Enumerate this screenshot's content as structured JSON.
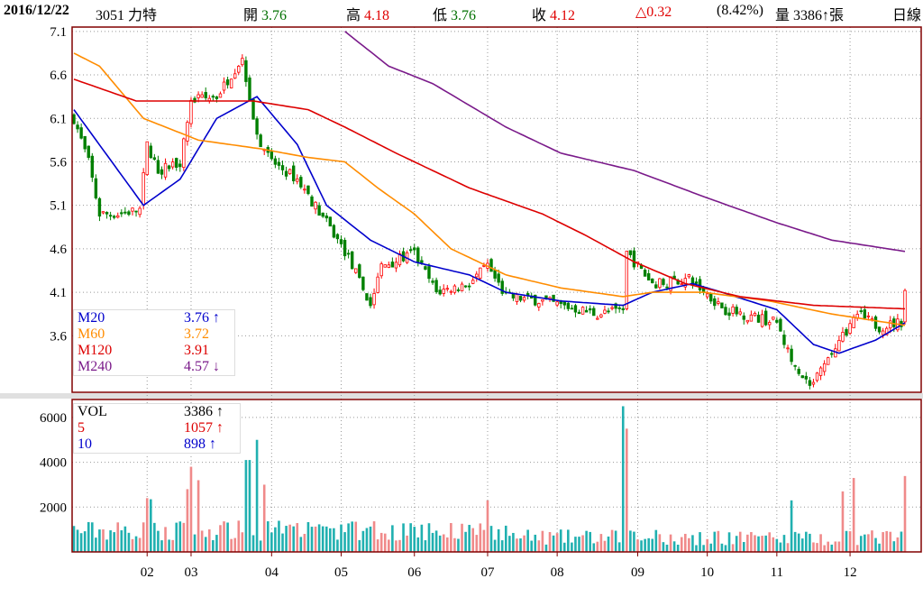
{
  "header": {
    "date": "2016/12/22",
    "stock": "3051 力特",
    "open_label": "開",
    "open": "3.76",
    "high_label": "高",
    "high": "4.18",
    "low_label": "低",
    "low": "3.76",
    "close_label": "收",
    "close": "4.12",
    "change": "△0.32",
    "change_pct": "(8.42%)",
    "volume": "量 3386↑張",
    "period": "日線"
  },
  "legend_price": [
    {
      "name": "M20",
      "value": "3.76 ↑",
      "color": "#0000cc"
    },
    {
      "name": "M60",
      "value": "3.72",
      "color": "#ff8c00"
    },
    {
      "name": "M120",
      "value": "3.91",
      "color": "#dd0000"
    },
    {
      "name": "M240",
      "value": "4.57 ↓",
      "color": "#7a1a8a"
    }
  ],
  "legend_vol": [
    {
      "name": "VOL",
      "value": "3386 ↑",
      "color": "#000000"
    },
    {
      "name": "5",
      "value": "1057 ↑",
      "color": "#dd0000"
    },
    {
      "name": "10",
      "value": "898 ↑",
      "color": "#0000cc"
    }
  ],
  "chart_data": {
    "type": "candlestick",
    "price_ticks": [
      "7.1",
      "6.6",
      "6.1",
      "5.6",
      "5.1",
      "4.6",
      "4.1",
      "3.6"
    ],
    "price_range": [
      2.95,
      7.15
    ],
    "vol_ticks": [
      "6000",
      "4000",
      "2000"
    ],
    "vol_range": [
      0,
      6800
    ],
    "months": [
      {
        "label": "02",
        "day": 20
      },
      {
        "label": "03",
        "day": 32
      },
      {
        "label": "04",
        "day": 54
      },
      {
        "label": "05",
        "day": 73
      },
      {
        "label": "06",
        "day": 93
      },
      {
        "label": "07",
        "day": 113
      },
      {
        "label": "08",
        "day": 132
      },
      {
        "label": "09",
        "day": 154
      },
      {
        "label": "10",
        "day": 173
      },
      {
        "label": "11",
        "day": 192
      },
      {
        "label": "12",
        "day": 212
      }
    ],
    "days": 228,
    "close_keypoints": [
      [
        0,
        6.1
      ],
      [
        4,
        5.6
      ],
      [
        7,
        5.0
      ],
      [
        12,
        5.0
      ],
      [
        18,
        5.05
      ],
      [
        20,
        5.8
      ],
      [
        23,
        5.5
      ],
      [
        29,
        5.6
      ],
      [
        32,
        6.3
      ],
      [
        39,
        6.35
      ],
      [
        46,
        6.8
      ],
      [
        50,
        5.9
      ],
      [
        54,
        5.6
      ],
      [
        61,
        5.4
      ],
      [
        69,
        4.9
      ],
      [
        75,
        4.5
      ],
      [
        81,
        3.95
      ],
      [
        84,
        4.4
      ],
      [
        93,
        4.55
      ],
      [
        99,
        4.1
      ],
      [
        108,
        4.2
      ],
      [
        113,
        4.4
      ],
      [
        118,
        4.05
      ],
      [
        128,
        4.0
      ],
      [
        143,
        3.85
      ],
      [
        150,
        3.9
      ],
      [
        151,
        4.55
      ],
      [
        158,
        4.2
      ],
      [
        168,
        4.25
      ],
      [
        178,
        3.9
      ],
      [
        192,
        3.75
      ],
      [
        197,
        3.2
      ],
      [
        201,
        3.0
      ],
      [
        205,
        3.25
      ],
      [
        210,
        3.6
      ],
      [
        214,
        3.85
      ],
      [
        220,
        3.7
      ],
      [
        226,
        3.76
      ],
      [
        227,
        4.12
      ]
    ],
    "ma": [
      {
        "name": "M20",
        "color": "#0000cc",
        "points": [
          [
            0,
            6.2
          ],
          [
            19,
            5.1
          ],
          [
            29,
            5.4
          ],
          [
            39,
            6.1
          ],
          [
            50,
            6.35
          ],
          [
            61,
            5.8
          ],
          [
            69,
            5.1
          ],
          [
            81,
            4.7
          ],
          [
            93,
            4.45
          ],
          [
            108,
            4.3
          ],
          [
            118,
            4.1
          ],
          [
            133,
            4.0
          ],
          [
            150,
            3.95
          ],
          [
            158,
            4.1
          ],
          [
            169,
            4.2
          ],
          [
            177,
            4.1
          ],
          [
            192,
            3.9
          ],
          [
            202,
            3.5
          ],
          [
            209,
            3.4
          ],
          [
            219,
            3.55
          ],
          [
            227,
            3.75
          ]
        ]
      },
      {
        "name": "M60",
        "color": "#ff8c00",
        "points": [
          [
            0,
            6.85
          ],
          [
            7,
            6.7
          ],
          [
            19,
            6.1
          ],
          [
            34,
            5.85
          ],
          [
            51,
            5.75
          ],
          [
            64,
            5.65
          ],
          [
            74,
            5.6
          ],
          [
            83,
            5.3
          ],
          [
            93,
            5.0
          ],
          [
            103,
            4.6
          ],
          [
            118,
            4.3
          ],
          [
            133,
            4.15
          ],
          [
            150,
            4.05
          ],
          [
            158,
            4.1
          ],
          [
            172,
            4.1
          ],
          [
            190,
            4.0
          ],
          [
            207,
            3.85
          ],
          [
            227,
            3.72
          ]
        ]
      },
      {
        "name": "M120",
        "color": "#dd0000",
        "points": [
          [
            0,
            6.55
          ],
          [
            17,
            6.3
          ],
          [
            29,
            6.3
          ],
          [
            49,
            6.3
          ],
          [
            64,
            6.2
          ],
          [
            74,
            6.0
          ],
          [
            88,
            5.7
          ],
          [
            108,
            5.3
          ],
          [
            128,
            5.0
          ],
          [
            140,
            4.75
          ],
          [
            153,
            4.45
          ],
          [
            167,
            4.2
          ],
          [
            182,
            4.05
          ],
          [
            202,
            3.95
          ],
          [
            227,
            3.91
          ]
        ]
      },
      {
        "name": "M240",
        "color": "#7a1a8a",
        "points": [
          [
            74,
            7.1
          ],
          [
            86,
            6.7
          ],
          [
            98,
            6.5
          ],
          [
            118,
            6.0
          ],
          [
            133,
            5.7
          ],
          [
            153,
            5.5
          ],
          [
            172,
            5.2
          ],
          [
            192,
            4.9
          ],
          [
            207,
            4.7
          ],
          [
            227,
            4.57
          ]
        ]
      }
    ],
    "volume_spikes": [
      [
        20,
        2400
      ],
      [
        21,
        2350
      ],
      [
        31,
        2800
      ],
      [
        32,
        3800
      ],
      [
        34,
        3200
      ],
      [
        47,
        4100
      ],
      [
        48,
        4100
      ],
      [
        50,
        5000
      ],
      [
        52,
        3000
      ],
      [
        113,
        2300
      ],
      [
        150,
        6500
      ],
      [
        151,
        5500
      ],
      [
        196,
        2300
      ],
      [
        210,
        2700
      ],
      [
        213,
        3300
      ],
      [
        227,
        3386
      ]
    ]
  }
}
